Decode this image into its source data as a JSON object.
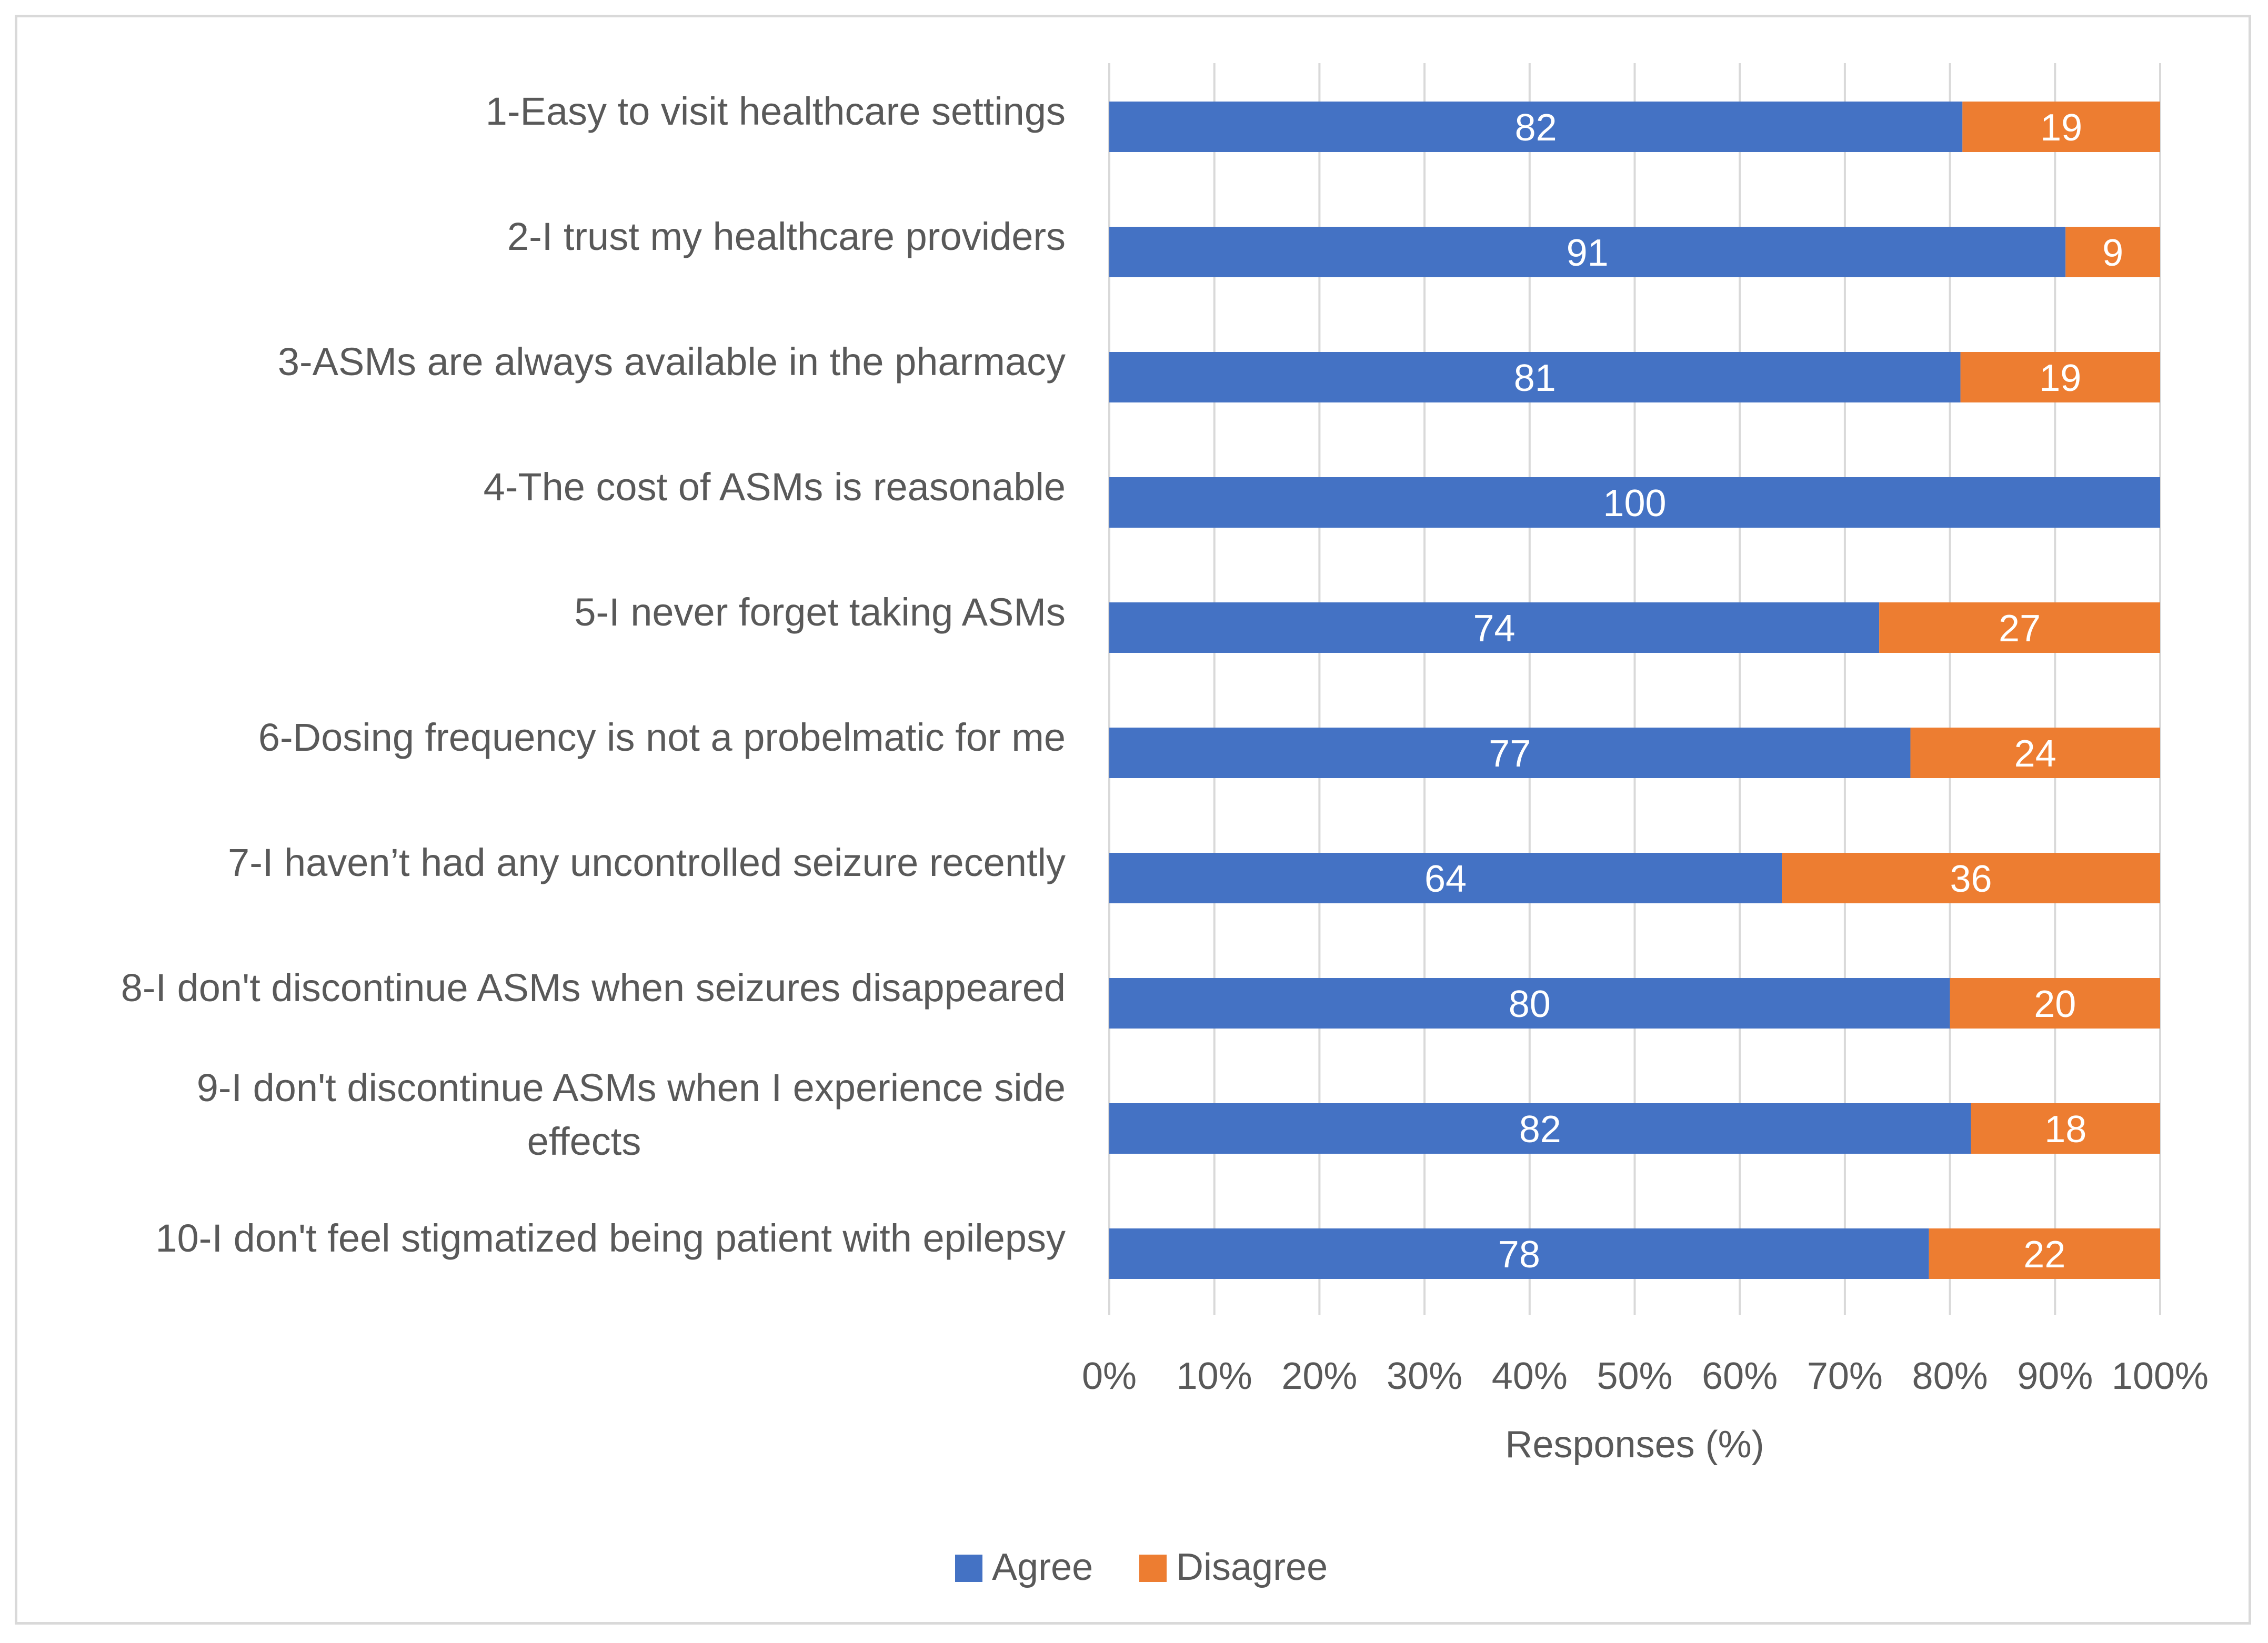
{
  "chart_data": {
    "type": "bar",
    "orientation": "horizontal",
    "stacked": "percent",
    "categories": [
      [
        "1-Easy to visit healthcare settings"
      ],
      [
        "2-I trust my healthcare providers"
      ],
      [
        "3-ASMs are always available in the pharmacy"
      ],
      [
        "4-The cost of ASMs is reasonable"
      ],
      [
        "5-I never forget taking ASMs"
      ],
      [
        "6-Dosing frequency is not a probelmatic for me"
      ],
      [
        "7-I haven’t had any uncontrolled seizure recently"
      ],
      [
        "8-I don't discontinue ASMs when seizures disappeared"
      ],
      [
        "9-I don't discontinue ASMs when I experience side",
        "effects"
      ],
      [
        "10-I don't feel stigmatized being patient with epilepsy"
      ]
    ],
    "series": [
      {
        "name": "Agree",
        "color": "#4472c4",
        "values": [
          82,
          91,
          81,
          100,
          74,
          77,
          64,
          80,
          82,
          78
        ]
      },
      {
        "name": "Disagree",
        "color": "#ed7d31",
        "values": [
          19,
          9,
          19,
          0,
          27,
          24,
          36,
          20,
          18,
          22
        ]
      }
    ],
    "xlim": [
      0,
      100
    ],
    "x_ticks": [
      "0%",
      "10%",
      "20%",
      "30%",
      "40%",
      "50%",
      "60%",
      "70%",
      "80%",
      "90%",
      "100%"
    ],
    "xlabel": "Responses (%)",
    "ylabel": "",
    "title": "",
    "grid": true,
    "legend": "bottom"
  }
}
